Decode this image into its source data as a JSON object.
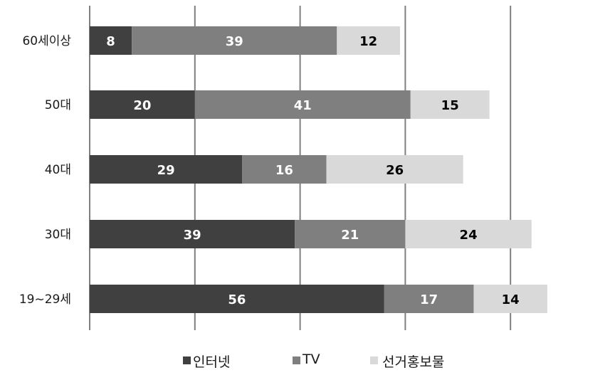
{
  "chart_data": {
    "type": "bar",
    "orientation": "horizontal",
    "stacked": true,
    "categories": [
      "60세이상",
      "50대",
      "40대",
      "30대",
      "19~29세"
    ],
    "series": [
      {
        "name": "인터넷",
        "values": [
          8,
          20,
          29,
          39,
          56
        ],
        "color": "#404040",
        "label_color": "#ffffff"
      },
      {
        "name": "TV",
        "values": [
          39,
          41,
          16,
          21,
          17
        ],
        "color": "#7f7f7f",
        "label_color": "#ffffff"
      },
      {
        "name": "선거홍보물",
        "values": [
          12,
          15,
          26,
          24,
          14
        ],
        "color": "#d9d9d9",
        "label_color": "#000000"
      }
    ],
    "xlim": [
      0,
      100
    ],
    "x_gridlines": [
      0,
      20,
      40,
      60,
      80
    ],
    "grid": true,
    "legend_position": "bottom",
    "title": "",
    "xlabel": "",
    "ylabel": ""
  }
}
